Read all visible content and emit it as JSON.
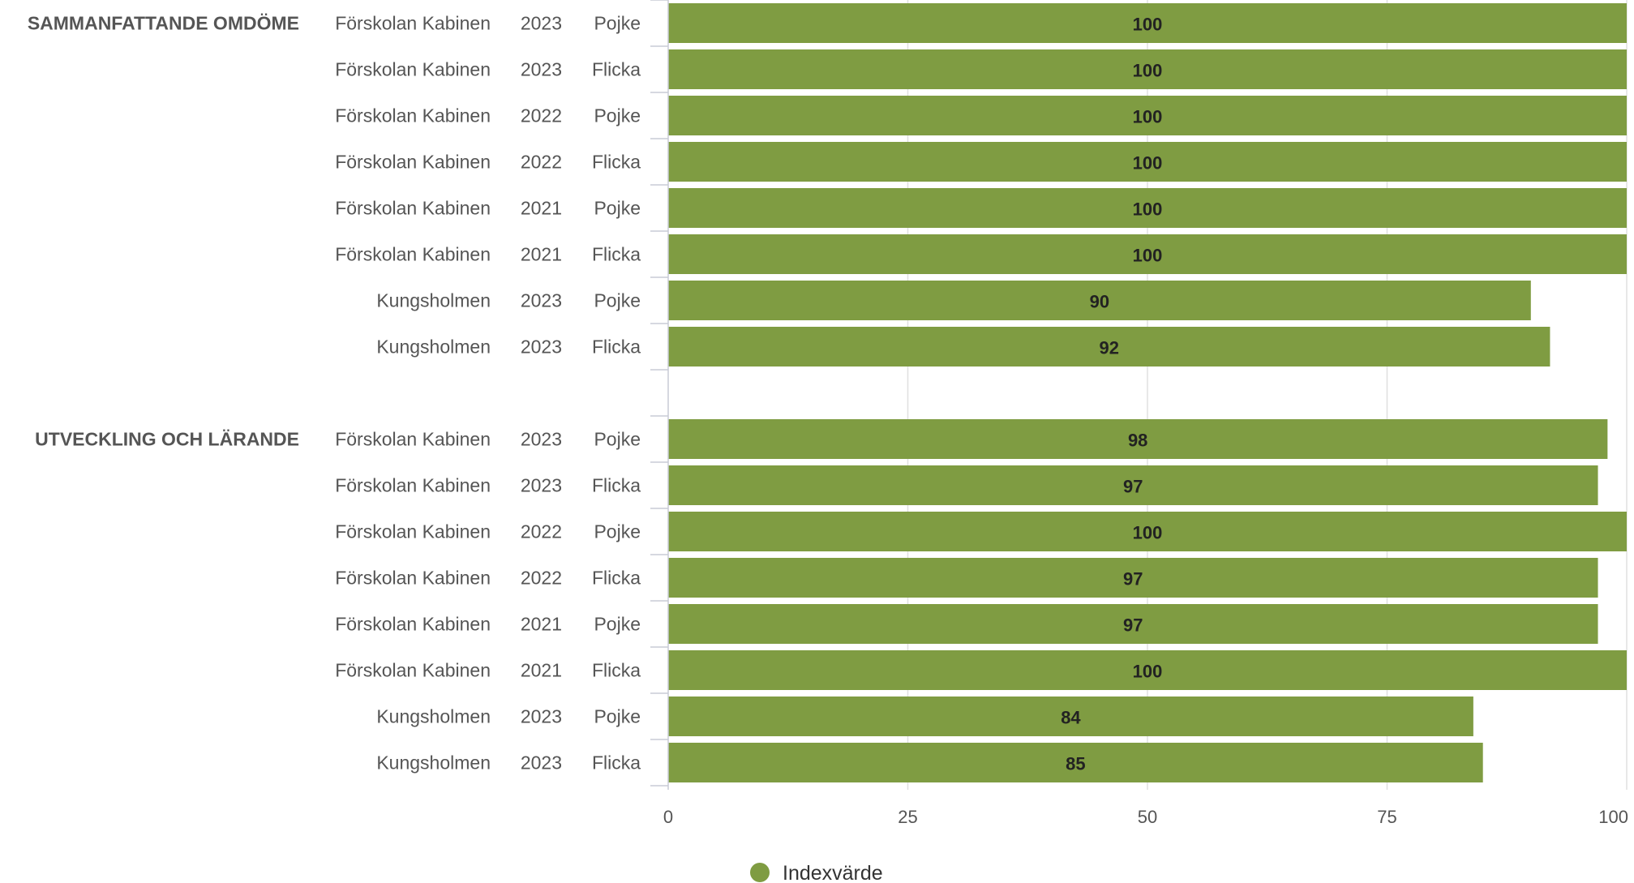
{
  "chart_data": {
    "type": "bar",
    "orientation": "horizontal",
    "xlim": [
      0,
      100
    ],
    "xticks": [
      0,
      25,
      50,
      75,
      100
    ],
    "grid": true,
    "legend_position": "bottom-center",
    "series": [
      {
        "name": "Indexvärde",
        "color": "#7f9c42"
      }
    ],
    "groups": [
      {
        "label": "SAMMANFATTANDE OMDÖME",
        "rows": [
          {
            "unit": "Förskolan Kabinen",
            "year": "2023",
            "gender": "Pojke",
            "value": 100
          },
          {
            "unit": "Förskolan Kabinen",
            "year": "2023",
            "gender": "Flicka",
            "value": 100
          },
          {
            "unit": "Förskolan Kabinen",
            "year": "2022",
            "gender": "Pojke",
            "value": 100
          },
          {
            "unit": "Förskolan Kabinen",
            "year": "2022",
            "gender": "Flicka",
            "value": 100
          },
          {
            "unit": "Förskolan Kabinen",
            "year": "2021",
            "gender": "Pojke",
            "value": 100
          },
          {
            "unit": "Förskolan Kabinen",
            "year": "2021",
            "gender": "Flicka",
            "value": 100
          },
          {
            "unit": "Kungsholmen",
            "year": "2023",
            "gender": "Pojke",
            "value": 90
          },
          {
            "unit": "Kungsholmen",
            "year": "2023",
            "gender": "Flicka",
            "value": 92
          }
        ]
      },
      {
        "label": "UTVECKLING OCH LÄRANDE",
        "rows": [
          {
            "unit": "Förskolan Kabinen",
            "year": "2023",
            "gender": "Pojke",
            "value": 98
          },
          {
            "unit": "Förskolan Kabinen",
            "year": "2023",
            "gender": "Flicka",
            "value": 97
          },
          {
            "unit": "Förskolan Kabinen",
            "year": "2022",
            "gender": "Pojke",
            "value": 100
          },
          {
            "unit": "Förskolan Kabinen",
            "year": "2022",
            "gender": "Flicka",
            "value": 97
          },
          {
            "unit": "Förskolan Kabinen",
            "year": "2021",
            "gender": "Pojke",
            "value": 97
          },
          {
            "unit": "Förskolan Kabinen",
            "year": "2021",
            "gender": "Flicka",
            "value": 100
          },
          {
            "unit": "Kungsholmen",
            "year": "2023",
            "gender": "Pojke",
            "value": 84
          },
          {
            "unit": "Kungsholmen",
            "year": "2023",
            "gender": "Flicka",
            "value": 85
          }
        ]
      }
    ]
  }
}
